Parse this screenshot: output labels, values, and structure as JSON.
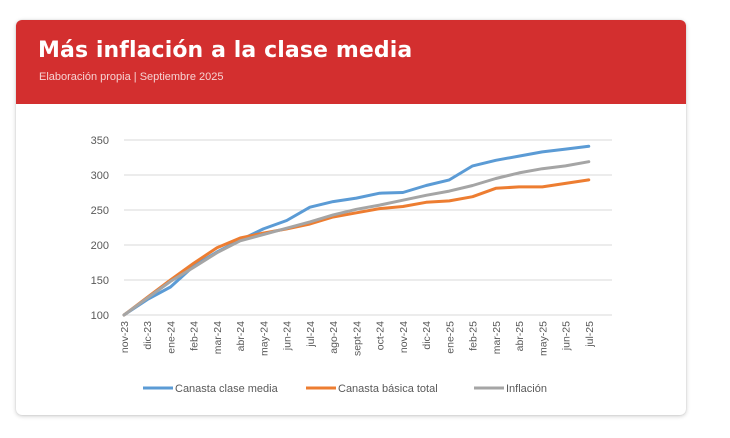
{
  "header": {
    "title": "Más inflación a la clase media",
    "subtitle": "Elaboración propia | Septiembre 2025",
    "color": "#d32f2f"
  },
  "chart_data": {
    "type": "line",
    "title": "Más inflación a la clase media",
    "subtitle": "Elaboración propia | Septiembre 2025",
    "xlabel": "",
    "ylabel": "",
    "ylim": [
      100,
      350
    ],
    "yticks": [
      100,
      150,
      200,
      250,
      300,
      350
    ],
    "grid": "horizontal",
    "legend_position": "bottom",
    "categories": [
      "nov-23",
      "dic-23",
      "ene-24",
      "feb-24",
      "mar-24",
      "abr-24",
      "may-24",
      "jun-24",
      "jul-24",
      "ago-24",
      "sept-24",
      "oct-24",
      "nov-24",
      "dic-24",
      "ene-25",
      "feb-25",
      "mar-25",
      "abr-25",
      "may-25",
      "jun-25",
      "jul-25"
    ],
    "series": [
      {
        "name": "Canasta clase media",
        "color": "#5b9bd5",
        "values": [
          100,
          122,
          140,
          170,
          190,
          207,
          223,
          235,
          254,
          262,
          267,
          274,
          275,
          285,
          293,
          313,
          321,
          327,
          333,
          337,
          341
        ]
      },
      {
        "name": "Canasta básica total",
        "color": "#ed7d31",
        "values": [
          100,
          125,
          150,
          174,
          196,
          210,
          217,
          223,
          230,
          240,
          246,
          252,
          255,
          261,
          263,
          269,
          281,
          283,
          283,
          288,
          293
        ]
      },
      {
        "name": "Inflación",
        "color": "#a5a5a5",
        "values": [
          100,
          124,
          148,
          168,
          189,
          206,
          215,
          224,
          233,
          243,
          251,
          257,
          264,
          271,
          277,
          285,
          295,
          303,
          309,
          313,
          319
        ]
      }
    ]
  }
}
